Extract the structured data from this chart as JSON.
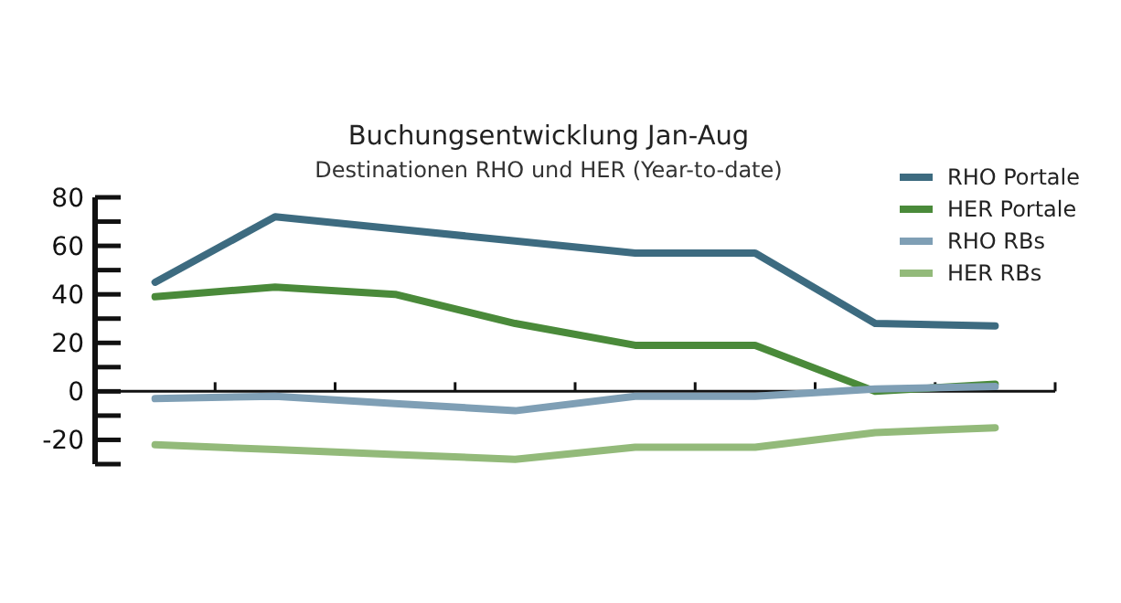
{
  "chart_data": {
    "type": "line",
    "title": "Buchungsentwicklung Jan-Aug",
    "subtitle": "Destinationen RHO und HER (Year-to-date)",
    "categories": [
      null,
      null,
      null,
      null,
      null,
      null,
      null,
      null
    ],
    "series": [
      {
        "name": "RHO Portale",
        "color": "#3d6b80",
        "values": [
          45,
          72,
          67,
          62,
          57,
          57,
          28,
          27
        ]
      },
      {
        "name": "HER Portale",
        "color": "#4a8a3a",
        "values": [
          39,
          43,
          40,
          28,
          19,
          19,
          0,
          3
        ]
      },
      {
        "name": "RHO RBs",
        "color": "#7f9fb5",
        "values": [
          -3,
          -2,
          -5,
          -8,
          -2,
          -2,
          1,
          2
        ]
      },
      {
        "name": "HER RBs",
        "color": "#93ba7a",
        "values": [
          -22,
          -24,
          -26,
          -28,
          -23,
          -23,
          -17,
          -15
        ]
      }
    ],
    "ylim": [
      -30,
      80
    ],
    "yticks": [
      80,
      {
        "value": 70,
        "label": null
      },
      60,
      {
        "value": 50,
        "label": null
      },
      40,
      {
        "value": 30,
        "label": null
      },
      20,
      {
        "value": 10,
        "label": null
      },
      0,
      {
        "value": -10,
        "label": null
      },
      -20,
      {
        "value": -30,
        "label": null
      }
    ],
    "legend": "top right",
    "marker": "none",
    "line_style": "solid"
  }
}
